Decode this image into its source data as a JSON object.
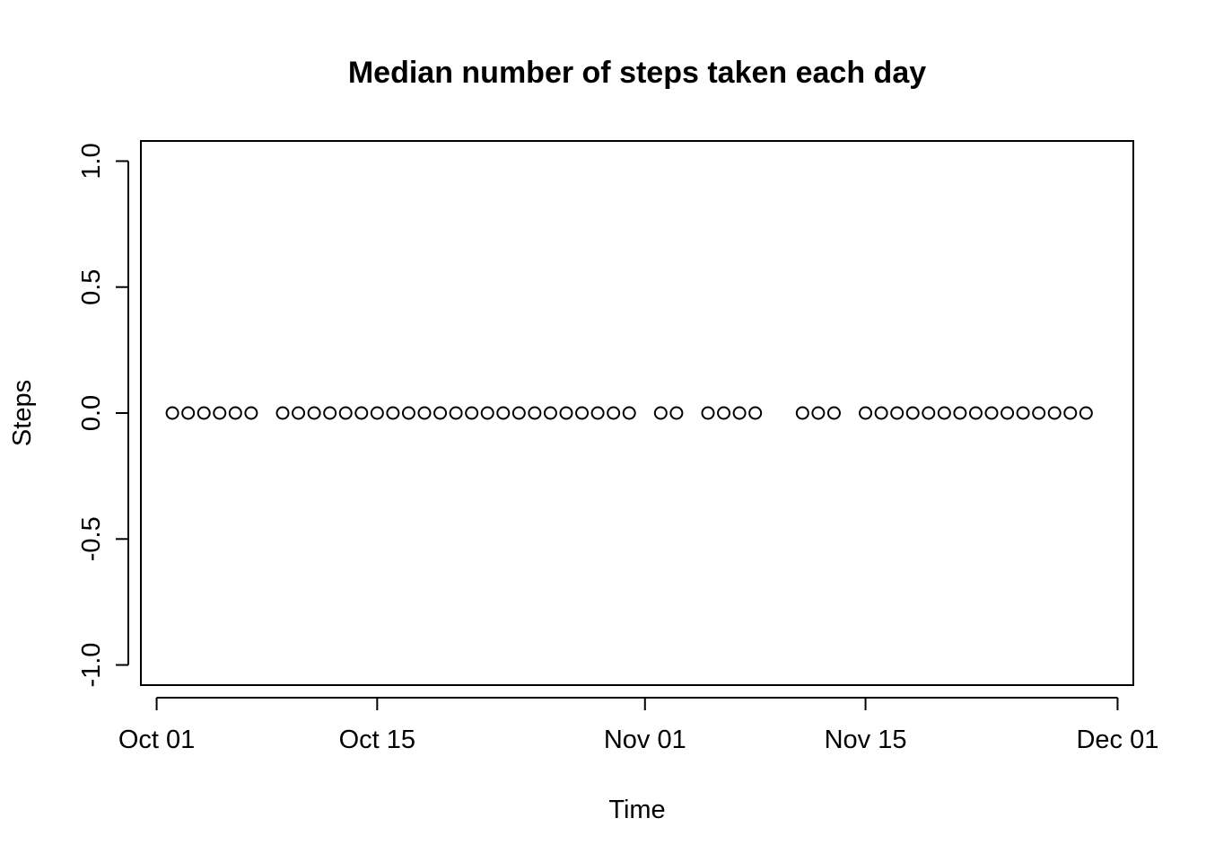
{
  "chart_data": {
    "type": "scatter",
    "title": "Median number of steps taken each day",
    "xlabel": "Time",
    "ylabel": "Steps",
    "xlim": [
      "2012-09-30",
      "2012-12-02"
    ],
    "ylim": [
      -1.08,
      1.08
    ],
    "x_ticks": [
      {
        "value": "2012-10-01",
        "label": "Oct 01"
      },
      {
        "value": "2012-10-15",
        "label": "Oct 15"
      },
      {
        "value": "2012-11-01",
        "label": "Nov 01"
      },
      {
        "value": "2012-11-15",
        "label": "Nov 15"
      },
      {
        "value": "2012-12-01",
        "label": "Dec 01"
      }
    ],
    "y_ticks": [
      {
        "value": -1.0,
        "label": "-1.0"
      },
      {
        "value": -0.5,
        "label": "-0.5"
      },
      {
        "value": 0.0,
        "label": "0.0"
      },
      {
        "value": 0.5,
        "label": "0.5"
      },
      {
        "value": 1.0,
        "label": "1.0"
      }
    ],
    "grid": false,
    "legend": "none",
    "series": [
      {
        "x": [
          "2012-10-02",
          "2012-10-03",
          "2012-10-04",
          "2012-10-05",
          "2012-10-06",
          "2012-10-07",
          "2012-10-09",
          "2012-10-10",
          "2012-10-11",
          "2012-10-12",
          "2012-10-13",
          "2012-10-14",
          "2012-10-15",
          "2012-10-16",
          "2012-10-17",
          "2012-10-18",
          "2012-10-19",
          "2012-10-20",
          "2012-10-21",
          "2012-10-22",
          "2012-10-23",
          "2012-10-24",
          "2012-10-25",
          "2012-10-26",
          "2012-10-27",
          "2012-10-28",
          "2012-10-29",
          "2012-10-30",
          "2012-10-31",
          "2012-11-02",
          "2012-11-03",
          "2012-11-05",
          "2012-11-06",
          "2012-11-07",
          "2012-11-08",
          "2012-11-11",
          "2012-11-12",
          "2012-11-13",
          "2012-11-15",
          "2012-11-16",
          "2012-11-17",
          "2012-11-18",
          "2012-11-19",
          "2012-11-20",
          "2012-11-21",
          "2012-11-22",
          "2012-11-23",
          "2012-11-24",
          "2012-11-25",
          "2012-11-26",
          "2012-11-27",
          "2012-11-28",
          "2012-11-29"
        ],
        "y": [
          0,
          0,
          0,
          0,
          0,
          0,
          0,
          0,
          0,
          0,
          0,
          0,
          0,
          0,
          0,
          0,
          0,
          0,
          0,
          0,
          0,
          0,
          0,
          0,
          0,
          0,
          0,
          0,
          0,
          0,
          0,
          0,
          0,
          0,
          0,
          0,
          0,
          0,
          0,
          0,
          0,
          0,
          0,
          0,
          0,
          0,
          0,
          0,
          0,
          0,
          0,
          0,
          0
        ]
      }
    ]
  }
}
